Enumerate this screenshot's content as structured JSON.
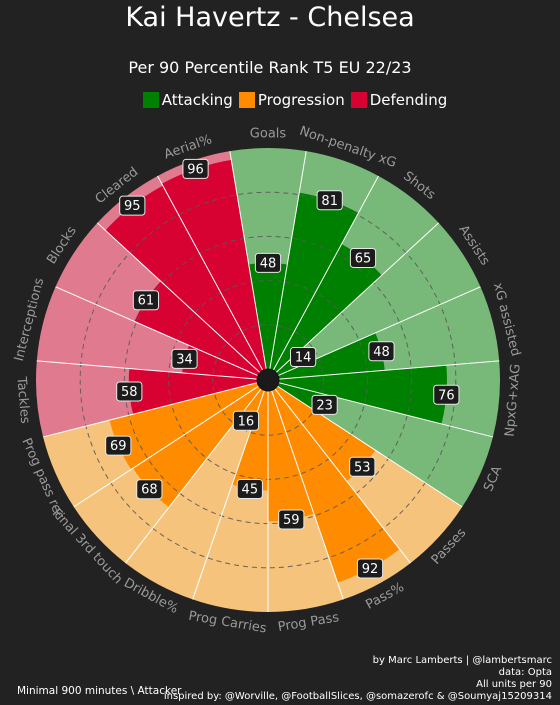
{
  "title": "Kai Havertz - Chelsea",
  "subtitle": "Per 90 Percentile Rank T5 EU 22/23",
  "legend": [
    {
      "label": "Attacking",
      "color": "#008000"
    },
    {
      "label": "Progression",
      "color": "#ff8c00"
    },
    {
      "label": "Defending",
      "color": "#d70232"
    }
  ],
  "credits": {
    "line1": "by Marc Lamberts | @lambertsmarc",
    "line2": "data: Opta",
    "line3": "All units per 90",
    "line4": "inspired by: @Worville, @FootballSlices, @somazerofc & @Soumyaj15209314"
  },
  "footnote": "Minimal 900 minutes \\ Attacker",
  "chart_data": {
    "type": "polar-bar",
    "title": "Kai Havertz - Chelsea",
    "subtitle": "Per 90 Percentile Rank T5 EU 22/23",
    "range": [
      0,
      100
    ],
    "categories": [
      {
        "name": "Attacking",
        "color": "#008000",
        "light": "#78b878"
      },
      {
        "name": "Progression",
        "color": "#ff8c00",
        "light": "#f5c37c"
      },
      {
        "name": "Defending",
        "color": "#d70232",
        "light": "#e07b8f"
      }
    ],
    "params": [
      {
        "label": "Goals",
        "value": 48,
        "group": "Attacking"
      },
      {
        "label": "Non-penalty xG",
        "value": 81,
        "group": "Attacking"
      },
      {
        "label": "Shots",
        "value": 65,
        "group": "Attacking"
      },
      {
        "label": "Assists",
        "value": 14,
        "group": "Attacking"
      },
      {
        "label": "xG assisted",
        "value": 48,
        "group": "Attacking"
      },
      {
        "label": "NpxG+xAG",
        "value": 76,
        "group": "Attacking"
      },
      {
        "label": "SCA",
        "value": 23,
        "group": "Attacking"
      },
      {
        "label": "Passes",
        "value": 53,
        "group": "Progression"
      },
      {
        "label": "Pass%",
        "value": 92,
        "group": "Progression"
      },
      {
        "label": "Prog Pass",
        "value": 59,
        "group": "Progression"
      },
      {
        "label": "Prog Carries",
        "value": 45,
        "group": "Progression"
      },
      {
        "label": "Dribble%",
        "value": 16,
        "group": "Progression"
      },
      {
        "label": "Final 3rd touch",
        "value": 68,
        "group": "Progression"
      },
      {
        "label": "Prog pass rec",
        "value": 69,
        "group": "Progression"
      },
      {
        "label": "Tackles",
        "value": 58,
        "group": "Defending"
      },
      {
        "label": "Interceptions",
        "value": 34,
        "group": "Defending"
      },
      {
        "label": "Blocks",
        "value": 61,
        "group": "Defending"
      },
      {
        "label": "Cleared",
        "value": 95,
        "group": "Defending"
      },
      {
        "label": "Aerial%",
        "value": 96,
        "group": "Defending"
      }
    ]
  }
}
